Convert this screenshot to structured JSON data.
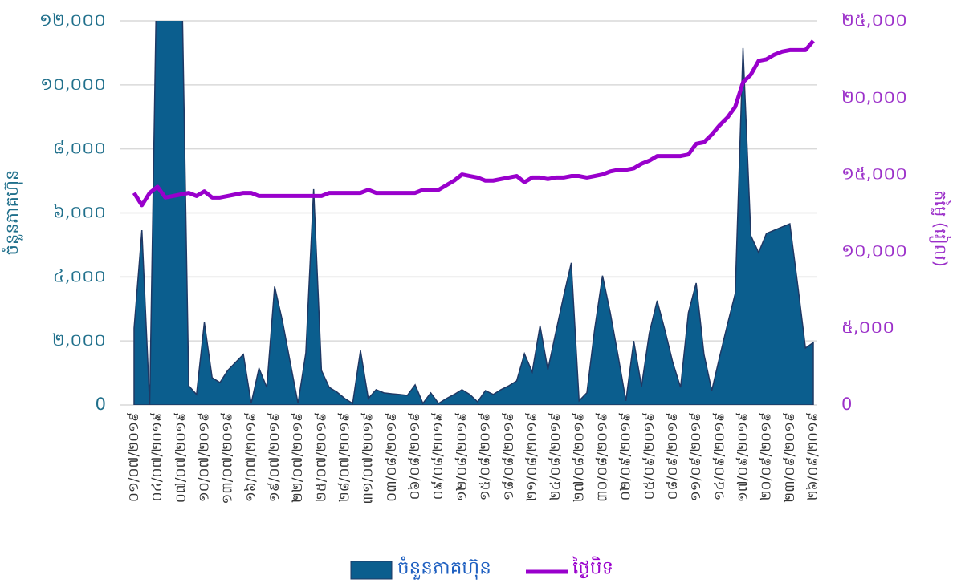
{
  "chart_data": {
    "type": "combo",
    "y_label": "ចំនួនភាគហ៊ុន",
    "y2_label": "តម្លៃ (រៀល)",
    "categories": [
      "០១/០៧/២០១៩",
      null,
      null,
      "០៤/០៧/២០១៩",
      null,
      null,
      "០៧/០៧/២០១៩",
      null,
      null,
      "១០/០៧/២០១៩",
      null,
      null,
      "១៣/០៧/២០១៩",
      null,
      null,
      "១៦/០៧/២០១៩",
      null,
      null,
      "១៩/០៧/២០១៩",
      null,
      null,
      "២២/០៧/២០១៩",
      null,
      null,
      "២៥/០៧/២០១៩",
      null,
      null,
      "២៨/០៧/២០១៩",
      null,
      null,
      "៣១/០៧/២០១៩",
      null,
      null,
      "០៣/០៨/២០១៩",
      null,
      null,
      "០៦/០៨/២០១៩",
      null,
      null,
      "០៩/០៨/២០១៩",
      null,
      null,
      "១២/០៨/២០១៩",
      null,
      null,
      "១៥/០៨/២០១៩",
      null,
      null,
      "១៨/០៨/២០១៩",
      null,
      null,
      "២១/០៨/២០១៩",
      null,
      null,
      "២៤/០៨/២០១៩",
      null,
      null,
      "២៧/០៨/២០១៩",
      null,
      null,
      "៣០/០៨/២០១៩",
      null,
      null,
      "០២/០៩/២០១៩",
      null,
      null,
      "០៥/០៩/២០១៩",
      null,
      null,
      "០៨/០៩/២០១៩",
      null,
      null,
      "១១/០៩/២០១៩",
      null,
      null,
      "១៤/០៩/២០១៩",
      null,
      null,
      "១៧/០៩/២០១៩",
      null,
      null,
      "២០/០៩/២០១៩",
      null,
      null,
      "២៣/០៩/២០១៩",
      null,
      null,
      "២៦/០៩/២០១៩"
    ],
    "series": [
      {
        "name": "ចំនួនភាគហ៊ុន",
        "type": "area",
        "color": "#0b5e8e",
        "values": [
          2400,
          5460,
          0,
          15000,
          15000,
          15000,
          15000,
          600,
          330,
          2580,
          850,
          700,
          1080,
          1330,
          1580,
          50,
          1150,
          550,
          3700,
          2630,
          1330,
          50,
          1630,
          6740,
          1080,
          550,
          400,
          200,
          50,
          1700,
          200,
          480,
          380,
          350,
          330,
          300,
          630,
          50,
          380,
          50,
          200,
          330,
          480,
          330,
          100,
          450,
          330,
          480,
          600,
          750,
          1600,
          1030,
          2480,
          1100,
          2250,
          3380,
          4440,
          130,
          380,
          2380,
          4040,
          2880,
          1530,
          130,
          2000,
          580,
          2250,
          3260,
          2330,
          1330,
          550,
          2880,
          3810,
          1580,
          450,
          1500,
          2510,
          3480,
          11150,
          5290,
          4760,
          5360,
          5460,
          5560,
          5660,
          3760,
          1780,
          1950
        ]
      },
      {
        "name": "ថ្ងៃបិទ",
        "type": "line",
        "axis": "y2",
        "color": "#9900cc",
        "values": [
          13800,
          13000,
          13800,
          14200,
          13500,
          13600,
          13700,
          13800,
          13600,
          13900,
          13500,
          13500,
          13600,
          13700,
          13800,
          13800,
          13600,
          13600,
          13600,
          13600,
          13600,
          13600,
          13600,
          13600,
          13600,
          13800,
          13800,
          13800,
          13800,
          13800,
          14000,
          13800,
          13800,
          13800,
          13800,
          13800,
          13800,
          14000,
          14000,
          14000,
          14300,
          14600,
          15000,
          14900,
          14800,
          14600,
          14600,
          14700,
          14800,
          14900,
          14500,
          14800,
          14800,
          14700,
          14800,
          14800,
          14900,
          14900,
          14800,
          14900,
          15000,
          15200,
          15300,
          15300,
          15400,
          15700,
          15900,
          16200,
          16200,
          16200,
          16200,
          16300,
          17000,
          17100,
          17600,
          18200,
          18700,
          19400,
          21000,
          21500,
          22400,
          22500,
          22800,
          23000,
          23100,
          23100,
          23100,
          23700
        ]
      }
    ],
    "ylim": [
      0,
      12000
    ],
    "yticks": [
      0,
      {
        "value": 2000,
        "label": "២,០០០"
      },
      {
        "value": 4000,
        "label": "៤,០០០"
      },
      {
        "value": 6000,
        "label": "៦,០០០"
      },
      {
        "value": 8000,
        "label": "៨,០០០"
      },
      {
        "value": 10000,
        "label": "១០,០០០"
      },
      {
        "value": 12000,
        "label": "១២,០០០"
      }
    ],
    "y2lim": [
      0,
      25000
    ],
    "y2ticks": [
      0,
      {
        "value": 5000,
        "label": "៥,០០០"
      },
      {
        "value": 10000,
        "label": "១០,០០០"
      },
      {
        "value": 15000,
        "label": "១៥,០០០"
      },
      {
        "value": 20000,
        "label": "២០,០០០"
      },
      {
        "value": 25000,
        "label": "២៥,០០០"
      }
    ],
    "grid": true,
    "legend": "bottom"
  }
}
